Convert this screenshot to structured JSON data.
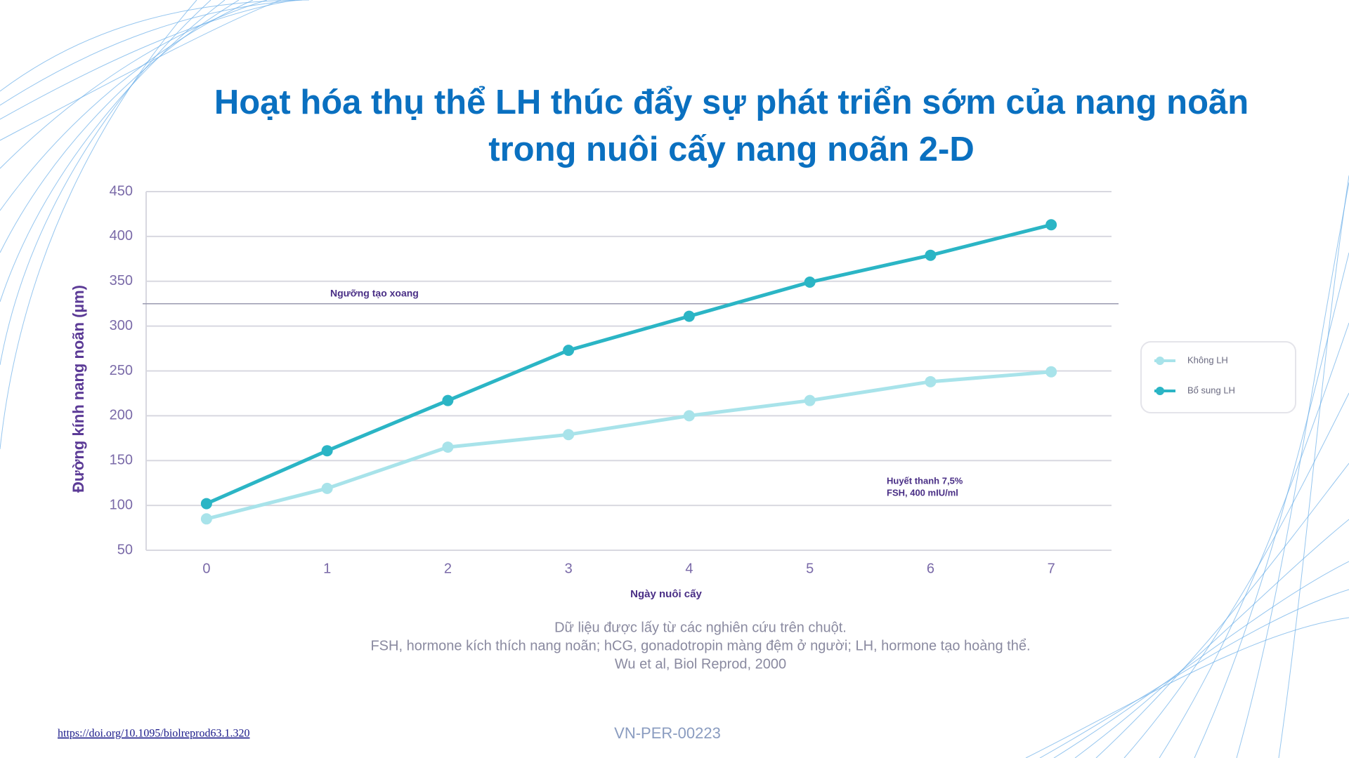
{
  "chart_data": {
    "type": "line",
    "title": [
      "Hoạt hóa thụ thể LH thúc đẩy sự phát triển sớm của nang noãn",
      "trong nuôi cấy nang noãn 2-D"
    ],
    "y_label": "Đường kính nang noãn (µm)",
    "x_label": "Ngày nuôi cấy",
    "x": [
      0,
      1,
      2,
      3,
      4,
      5,
      6,
      7
    ],
    "xlim": [
      -0.5,
      7.5
    ],
    "xticks": [
      0,
      1,
      2,
      3,
      4,
      5,
      6,
      7
    ],
    "ylim": [
      50,
      450
    ],
    "yticks": [
      50,
      100,
      150,
      200,
      250,
      300,
      350,
      400,
      450
    ],
    "grid": true,
    "series": [
      {
        "name": "Không LH",
        "color": "#a8e3ea",
        "values": [
          85,
          119,
          165,
          179,
          200,
          217,
          238,
          249
        ]
      },
      {
        "name": "Bổ sung LH",
        "color": "#2bb5c5",
        "values": [
          102,
          161,
          217,
          273,
          311,
          349,
          379,
          413
        ]
      }
    ],
    "threshold": {
      "value": 325,
      "label": "Ngưỡng tạo xoang"
    },
    "condition_note": [
      "Huyết thanh 7,5%",
      "FSH, 400 mIU/ml"
    ],
    "legend_position": "right"
  },
  "footnotes": [
    "Dữ liệu được lấy từ các nghiên cứu trên chuột.",
    "FSH, hormone kích thích nang noãn; hCG, gonadotropin màng đệm ở người; LH, hormone tạo hoàng thể.",
    "Wu et al, Biol Reprod, 2000"
  ],
  "link": "https://doi.org/10.1095/biolreprod63.1.320",
  "code": "VN-PER-00223"
}
